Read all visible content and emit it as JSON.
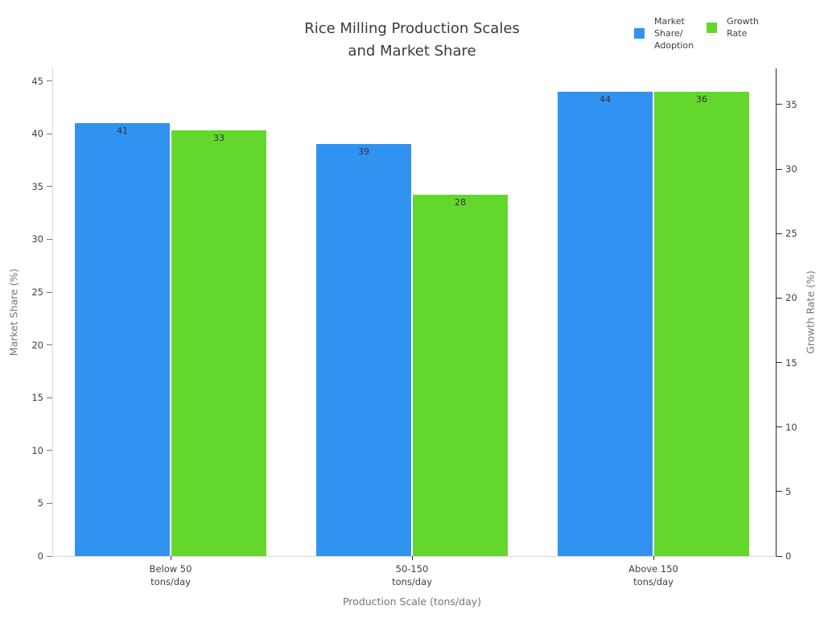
{
  "chart_data": {
    "type": "bar",
    "title": "Rice Milling Production Scales\nand Market Share",
    "categories": [
      "Below 50\ntons/day",
      "50-150\ntons/day",
      "Above 150\ntons/day"
    ],
    "series": [
      {
        "name": "Market Share/Adoption",
        "axis": "left",
        "color": "#3093f1",
        "values": [
          41,
          39,
          44
        ]
      },
      {
        "name": "Growth Rate",
        "axis": "right",
        "color": "#64d72d",
        "values": [
          33,
          28,
          36
        ]
      }
    ],
    "xlabel": "Production Scale (tons/day)",
    "left_axis": {
      "label": "Market Share (%)",
      "ticks": [
        0,
        5,
        10,
        15,
        20,
        25,
        30,
        35,
        40,
        45
      ],
      "range": [
        0,
        46.2
      ]
    },
    "right_axis": {
      "label": "Growth Rate (%)",
      "ticks": [
        0,
        5,
        10,
        15,
        20,
        25,
        30,
        35
      ],
      "range": [
        0,
        37.8
      ]
    },
    "grid": false,
    "bar_value_labels_shown": true,
    "legend": {
      "position": "top-right",
      "items": [
        {
          "label": "Market\nShare/\nAdoption",
          "color": "#3093f1"
        },
        {
          "label": "Growth\nRate",
          "color": "#64d72d"
        }
      ]
    }
  }
}
